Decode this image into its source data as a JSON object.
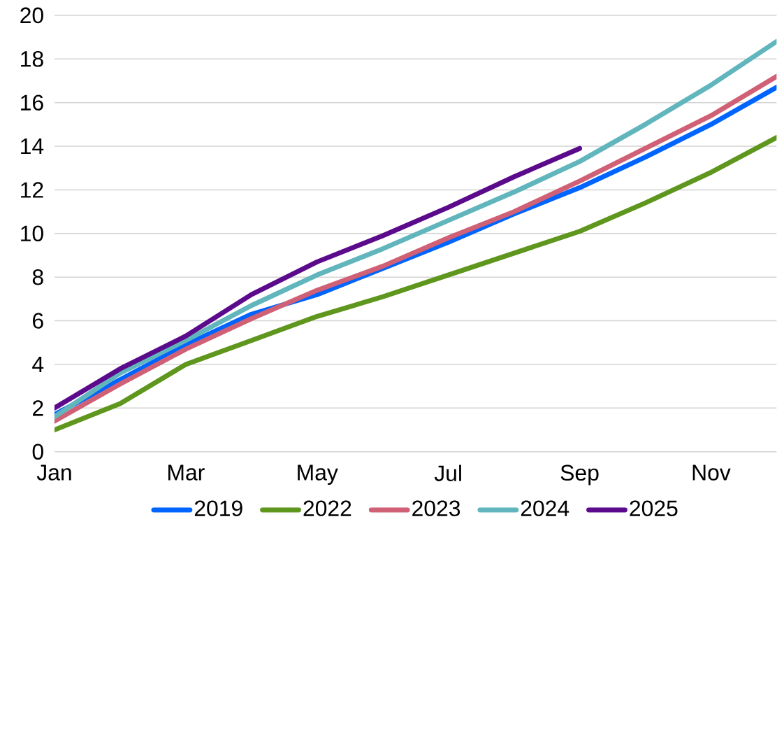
{
  "chart_data": {
    "type": "line",
    "categories": [
      "Jan",
      null,
      "Mar",
      null,
      "May",
      null,
      "Jul",
      null,
      "Sep",
      null,
      "Nov",
      null
    ],
    "series": [
      {
        "name": "2019",
        "color": "#0064ff",
        "values": [
          1.7,
          3.3,
          4.9,
          6.3,
          7.2,
          8.4,
          9.6,
          10.9,
          12.1,
          13.5,
          15.0,
          16.7
        ]
      },
      {
        "name": "2022",
        "color": "#5f961e",
        "values": [
          1.0,
          2.2,
          4.0,
          5.1,
          6.2,
          7.1,
          8.1,
          9.1,
          10.1,
          11.4,
          12.8,
          14.4
        ]
      },
      {
        "name": "2023",
        "color": "#d06075",
        "values": [
          1.4,
          3.1,
          4.7,
          6.1,
          7.4,
          8.5,
          9.8,
          11.0,
          12.4,
          13.9,
          15.4,
          17.2
        ]
      },
      {
        "name": "2024",
        "color": "#60b6bc",
        "values": [
          1.6,
          3.6,
          5.1,
          6.7,
          8.1,
          9.3,
          10.6,
          11.9,
          13.3,
          15.0,
          16.8,
          18.8
        ]
      },
      {
        "name": "2025",
        "color": "#5c0a8c",
        "values": [
          2.0,
          3.8,
          5.3,
          7.2,
          8.7,
          9.9,
          11.2,
          12.6,
          13.9,
          null,
          null,
          null
        ]
      }
    ],
    "ylim": [
      0,
      20
    ],
    "yticks": [
      0,
      2,
      4,
      6,
      8,
      10,
      12,
      14,
      16,
      18,
      20
    ],
    "grid": "y",
    "legend": "bottom",
    "marker": "none",
    "line_style": "solid"
  }
}
